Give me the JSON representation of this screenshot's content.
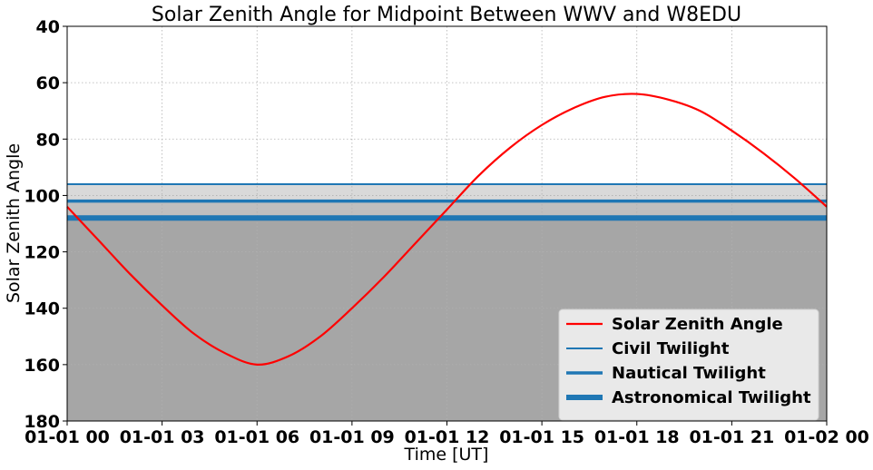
{
  "chart_data": {
    "type": "line",
    "title": "Solar Zenith Angle for Midpoint Between WWV and W8EDU",
    "xlabel": "Time [UT]",
    "ylabel": "Solar Zenith Angle",
    "xlim": [
      0,
      24
    ],
    "ylim": [
      180,
      40
    ],
    "y_inverted": true,
    "grid": true,
    "legend_position": "lower-right",
    "x_ticks": [
      {
        "value": 0,
        "label": "01-01 00"
      },
      {
        "value": 3,
        "label": "01-01 03"
      },
      {
        "value": 6,
        "label": "01-01 06"
      },
      {
        "value": 9,
        "label": "01-01 09"
      },
      {
        "value": 12,
        "label": "01-01 12"
      },
      {
        "value": 15,
        "label": "01-01 15"
      },
      {
        "value": 18,
        "label": "01-01 18"
      },
      {
        "value": 21,
        "label": "01-01 21"
      },
      {
        "value": 24,
        "label": "01-02 00"
      }
    ],
    "y_ticks": [
      {
        "value": 40,
        "label": "40"
      },
      {
        "value": 60,
        "label": "60"
      },
      {
        "value": 80,
        "label": "80"
      },
      {
        "value": 100,
        "label": "100"
      },
      {
        "value": 120,
        "label": "120"
      },
      {
        "value": 140,
        "label": "140"
      },
      {
        "value": 160,
        "label": "160"
      },
      {
        "value": 180,
        "label": "180"
      }
    ],
    "series": [
      {
        "name": "Solar Zenith Angle",
        "color": "#ff0000",
        "x": [
          0,
          1,
          2,
          3,
          4,
          5,
          6,
          7,
          8,
          9,
          10,
          11,
          12,
          13,
          14,
          15,
          16,
          17,
          18,
          19,
          20,
          21,
          22,
          23,
          24
        ],
        "y": [
          104,
          116,
          128,
          139,
          149,
          156,
          160,
          157,
          150,
          140,
          129,
          117,
          105,
          93,
          83,
          75,
          69,
          65,
          64,
          66,
          70,
          77,
          85,
          94,
          104
        ]
      }
    ],
    "reference_lines": [
      {
        "name": "Civil Twilight",
        "value": 96,
        "color": "#1f77b4",
        "width": 2
      },
      {
        "name": "Nautical Twilight",
        "value": 102,
        "color": "#1f77b4",
        "width": 3.5
      },
      {
        "name": "Astronomical Twilight",
        "value": 108,
        "color": "#1f77b4",
        "width": 6
      }
    ],
    "shaded_regions": [
      {
        "from": 96,
        "to": 102,
        "color": "#d9d9d9"
      },
      {
        "from": 102,
        "to": 108,
        "color": "#bfbfbf"
      },
      {
        "from": 108,
        "to": 180,
        "color": "#a6a6a6"
      }
    ]
  }
}
